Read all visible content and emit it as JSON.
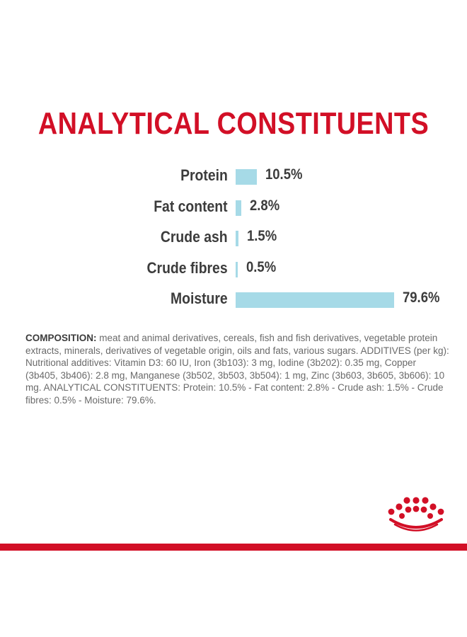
{
  "title": "ANALYTICAL CONSTITUENTS",
  "colors": {
    "title_red": "#d20f26",
    "bar_blue": "#a6dae7",
    "text_dark": "#3c3c3c",
    "text_gray": "#6a6a6a",
    "rule_red": "#d20f26"
  },
  "chart_data": {
    "type": "bar",
    "orientation": "horizontal",
    "title": "ANALYTICAL CONSTITUENTS",
    "categories": [
      "Protein",
      "Fat content",
      "Crude ash",
      "Crude fibres",
      "Moisture"
    ],
    "values": [
      10.5,
      2.8,
      1.5,
      0.5,
      79.6
    ],
    "value_labels": [
      "10.5%",
      "2.8%",
      "1.5%",
      "0.5%",
      "79.6%"
    ],
    "unit": "%",
    "xlim": [
      0,
      79.6
    ],
    "grid": false,
    "legend": "none"
  },
  "composition": {
    "lead": "COMPOSITION:",
    "text": " meat and animal derivatives, cereals, fish and fish derivatives, vegetable protein extracts, minerals, derivatives of vegetable origin, oils and fats, various sugars. ADDITIVES (per kg): Nutritional additives: Vitamin D3: 60 IU, Iron (3b103): 3 mg, Iodine (3b202): 0.35 mg, Copper (3b405, 3b406): 2.8 mg, Manganese (3b502, 3b503, 3b504): 1 mg, Zinc (3b603, 3b605, 3b606): 10 mg. ANALYTICAL CONSTITUENTS: Protein: 10.5% - Fat content: 2.8% - Crude ash: 1.5% - Crude fibres: 0.5% - Moisture: 79.6%."
  },
  "logo": {
    "icon": "royal-canin-crown-icon"
  }
}
